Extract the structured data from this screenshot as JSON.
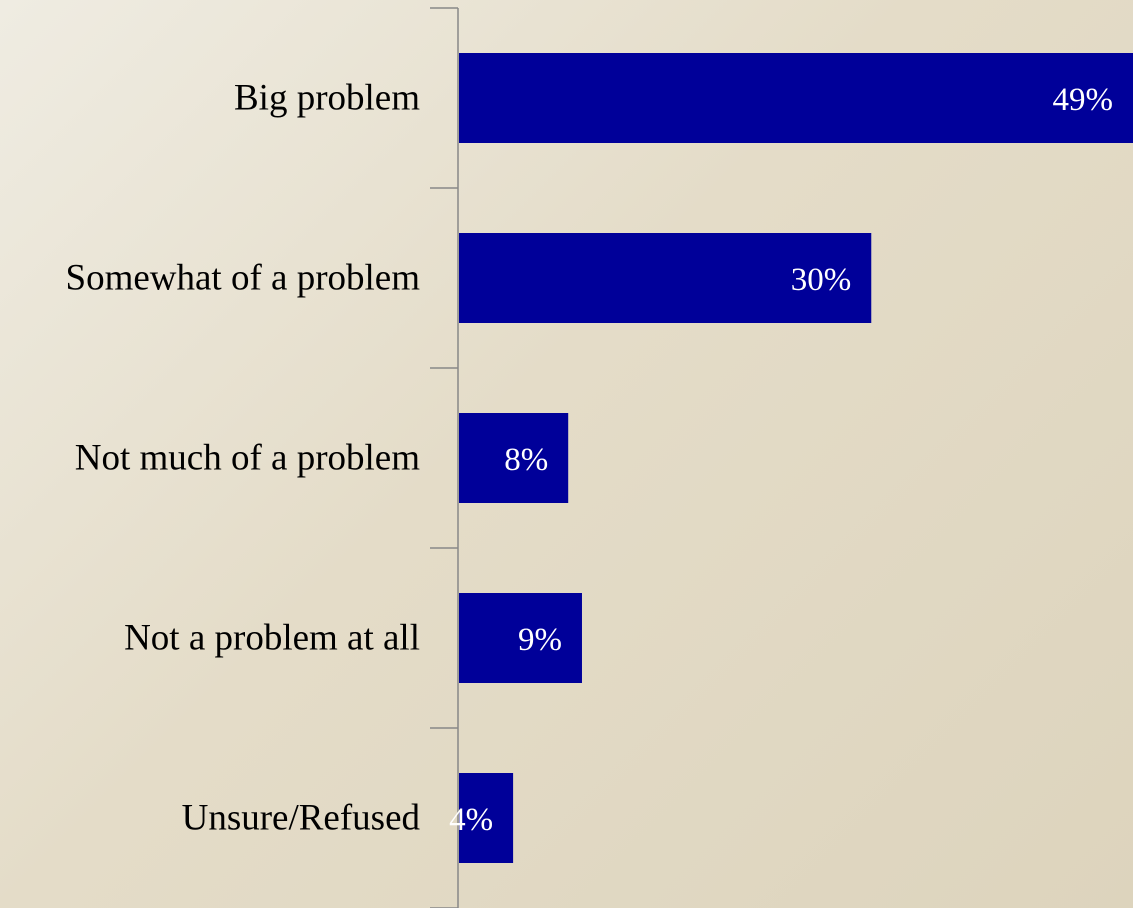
{
  "chart_data": {
    "type": "bar",
    "orientation": "horizontal",
    "categories": [
      "Big problem",
      "Somewhat of a problem",
      "Not much of a problem",
      "Not a problem at all",
      "Unsure/Refused"
    ],
    "values": [
      49,
      30,
      8,
      9,
      4
    ],
    "value_labels": [
      "49%",
      "30%",
      "8%",
      "9%",
      "4%"
    ],
    "unit": "%",
    "xlim": [
      0,
      49
    ],
    "grid": false,
    "legend": "none",
    "bar_color": "#000099",
    "axis_color": "#888888"
  }
}
